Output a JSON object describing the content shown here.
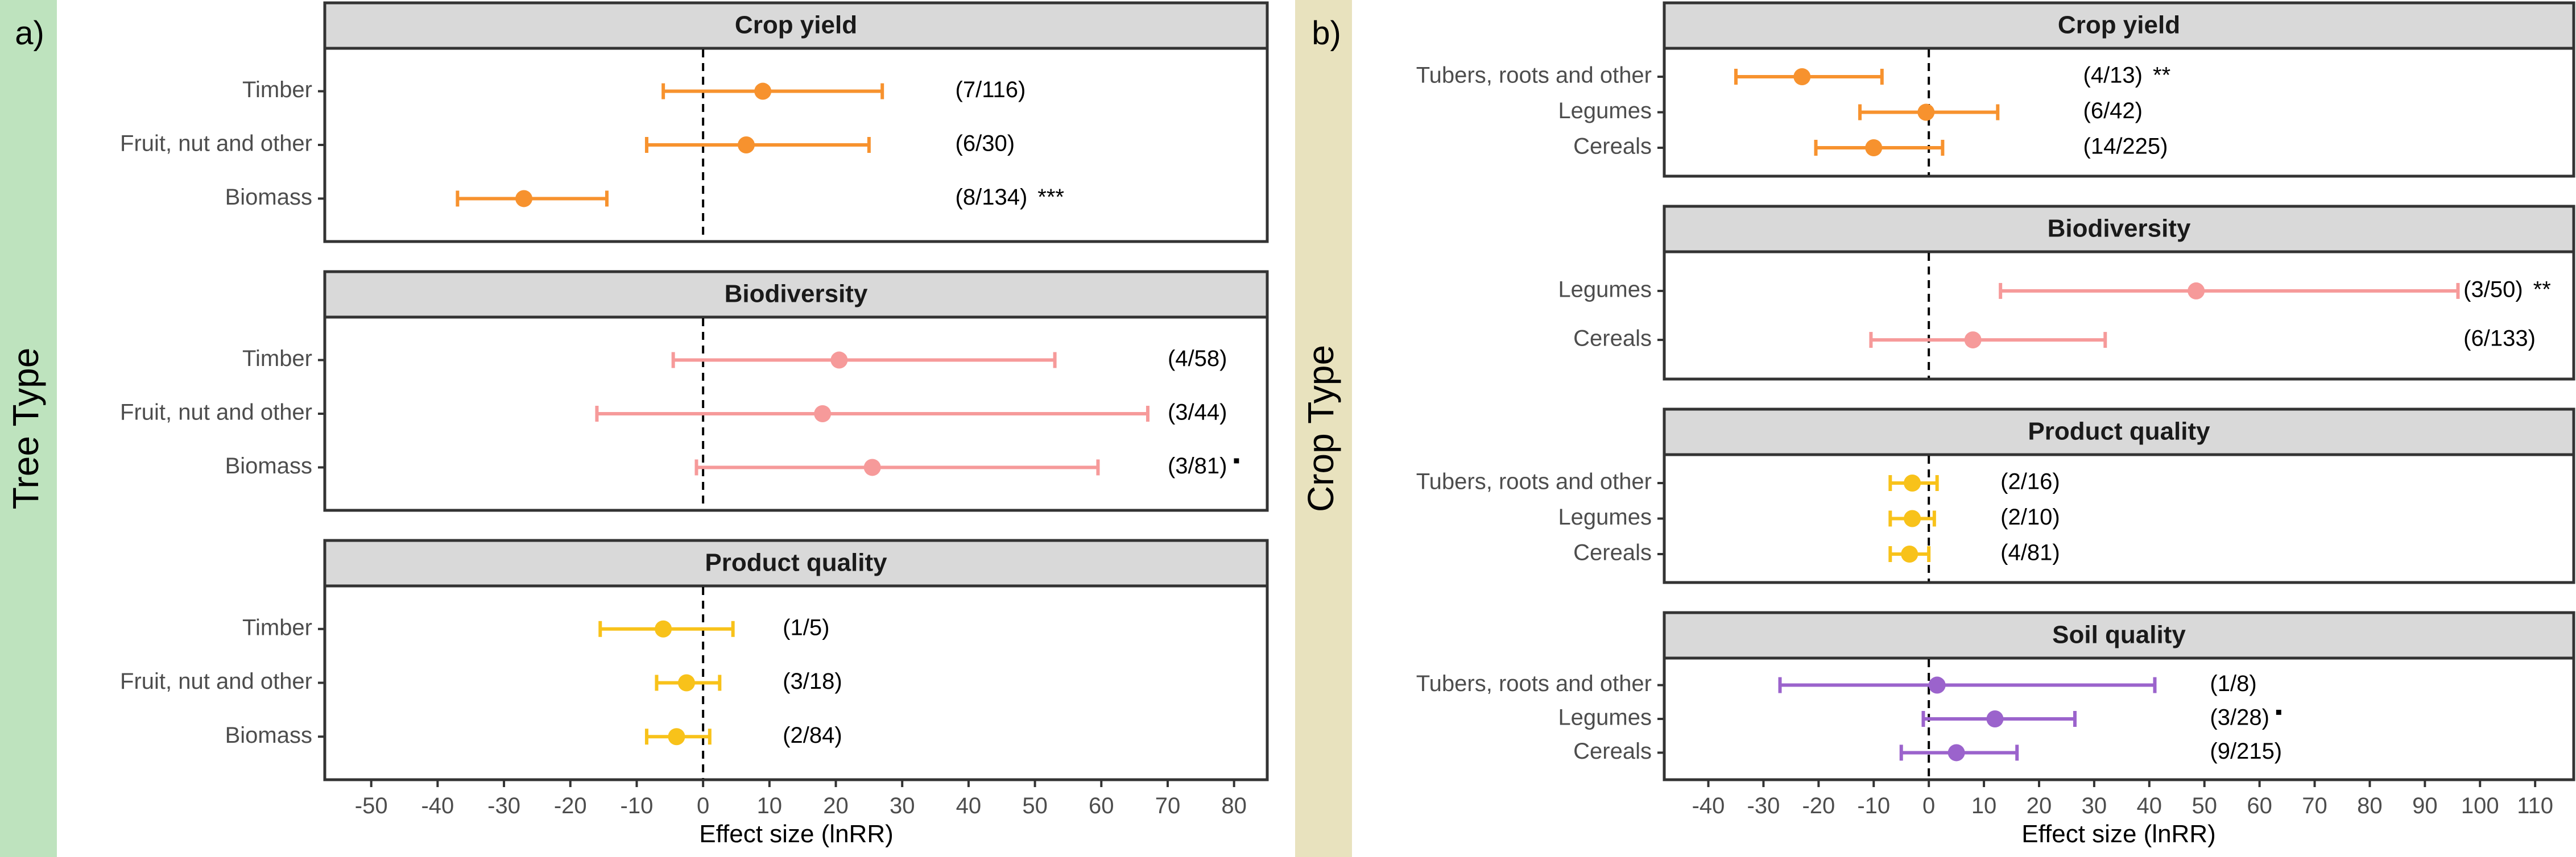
{
  "colors": {
    "crop_yield": "#F7922E",
    "biodiversity": "#F69A9A",
    "product_quality": "#F8C21A",
    "soil_quality": "#9B63CC",
    "strip_a": "#BEE3BE",
    "strip_b": "#E8E2BE",
    "facet_header": "#D9D9D9"
  },
  "chart_data": [
    {
      "type": "scatter",
      "subtype": "forest-plot",
      "panel_label": "a)",
      "group_label": "Tree Type",
      "xlabel": "Effect size (lnRR)",
      "xlim": [
        -57,
        85
      ],
      "xticks": [
        -50,
        -40,
        -30,
        -20,
        -10,
        0,
        10,
        20,
        30,
        40,
        50,
        60,
        70,
        80
      ],
      "reference_line": 0,
      "facets": [
        {
          "title": "Crop yield",
          "color_key": "crop_yield",
          "rows": [
            {
              "label": "Timber",
              "estimate": 9,
              "lower": -6,
              "upper": 27,
              "annotation": "(7/116)",
              "sig": "",
              "note_x": 38
            },
            {
              "label": "Fruit, nut and other",
              "estimate": 6.5,
              "lower": -8.5,
              "upper": 25,
              "annotation": "(6/30)",
              "sig": "",
              "note_x": 38
            },
            {
              "label": "Biomass",
              "estimate": -27,
              "lower": -37,
              "upper": -14.5,
              "annotation": "(8/134)",
              "sig": "***",
              "note_x": 38
            }
          ]
        },
        {
          "title": "Biodiversity",
          "color_key": "biodiversity",
          "rows": [
            {
              "label": "Timber",
              "estimate": 20.5,
              "lower": -4.5,
              "upper": 53,
              "annotation": "(4/58)",
              "sig": "",
              "note_x": 70
            },
            {
              "label": "Fruit, nut and other",
              "estimate": 18,
              "lower": -16,
              "upper": 67,
              "annotation": "(3/44)",
              "sig": "",
              "note_x": 70
            },
            {
              "label": "Biomass",
              "estimate": 25.5,
              "lower": -1,
              "upper": 59.5,
              "annotation": "(3/81)",
              "sig": "▪",
              "note_x": 70
            }
          ]
        },
        {
          "title": "Product quality",
          "color_key": "product_quality",
          "rows": [
            {
              "label": "Timber",
              "estimate": -6,
              "lower": -15.5,
              "upper": 4.5,
              "annotation": "(1/5)",
              "sig": "",
              "note_x": 12
            },
            {
              "label": "Fruit, nut and other",
              "estimate": -2.5,
              "lower": -7,
              "upper": 2.5,
              "annotation": "(3/18)",
              "sig": "",
              "note_x": 12
            },
            {
              "label": "Biomass",
              "estimate": -4,
              "lower": -8.5,
              "upper": 1,
              "annotation": "(2/84)",
              "sig": "",
              "note_x": 12
            }
          ]
        }
      ]
    },
    {
      "type": "scatter",
      "subtype": "forest-plot",
      "panel_label": "b)",
      "group_label": "Crop Type",
      "xlabel": "Effect size (lnRR)",
      "xlim": [
        -48,
        117
      ],
      "xticks": [
        -40,
        -30,
        -20,
        -10,
        0,
        10,
        20,
        30,
        40,
        50,
        60,
        70,
        80,
        90,
        100,
        110
      ],
      "reference_line": 0,
      "facets": [
        {
          "title": "Crop yield",
          "color_key": "crop_yield",
          "rows": [
            {
              "label": "Tubers, roots and other",
              "estimate": -23,
              "lower": -35,
              "upper": -8.5,
              "annotation": "(4/13)",
              "sig": "**",
              "note_x": 28
            },
            {
              "label": "Legumes",
              "estimate": -0.5,
              "lower": -12.5,
              "upper": 12.5,
              "annotation": "(6/42)",
              "sig": "",
              "note_x": 28
            },
            {
              "label": "Cereals",
              "estimate": -10,
              "lower": -20.5,
              "upper": 2.5,
              "annotation": "(14/225)",
              "sig": "",
              "note_x": 28
            }
          ]
        },
        {
          "title": "Biodiversity",
          "color_key": "biodiversity",
          "rows": [
            {
              "label": "Legumes",
              "estimate": 48.5,
              "lower": 13,
              "upper": 96,
              "annotation": "(3/50)",
              "sig": "**",
              "note_x": 97
            },
            {
              "label": "Cereals",
              "estimate": 8,
              "lower": -10.5,
              "upper": 32,
              "annotation": "(6/133)",
              "sig": "",
              "note_x": 97
            }
          ]
        },
        {
          "title": "Product quality",
          "color_key": "product_quality",
          "rows": [
            {
              "label": "Tubers, roots and other",
              "estimate": -3,
              "lower": -7,
              "upper": 1.5,
              "annotation": "(2/16)",
              "sig": "",
              "note_x": 13
            },
            {
              "label": "Legumes",
              "estimate": -3,
              "lower": -7,
              "upper": 1,
              "annotation": "(2/10)",
              "sig": "",
              "note_x": 13
            },
            {
              "label": "Cereals",
              "estimate": -3.5,
              "lower": -7,
              "upper": 0,
              "annotation": "(4/81)",
              "sig": "",
              "note_x": 13
            }
          ]
        },
        {
          "title": "Soil quality",
          "color_key": "soil_quality",
          "rows": [
            {
              "label": "Tubers, roots and other",
              "estimate": 1.5,
              "lower": -27,
              "upper": 41,
              "annotation": "(1/8)",
              "sig": "",
              "note_x": 51
            },
            {
              "label": "Legumes",
              "estimate": 12,
              "lower": -1,
              "upper": 26.5,
              "annotation": "(3/28)",
              "sig": "▪",
              "note_x": 51
            },
            {
              "label": "Cereals",
              "estimate": 5,
              "lower": -5,
              "upper": 16,
              "annotation": "(9/215)",
              "sig": "",
              "note_x": 51
            }
          ]
        }
      ]
    }
  ]
}
